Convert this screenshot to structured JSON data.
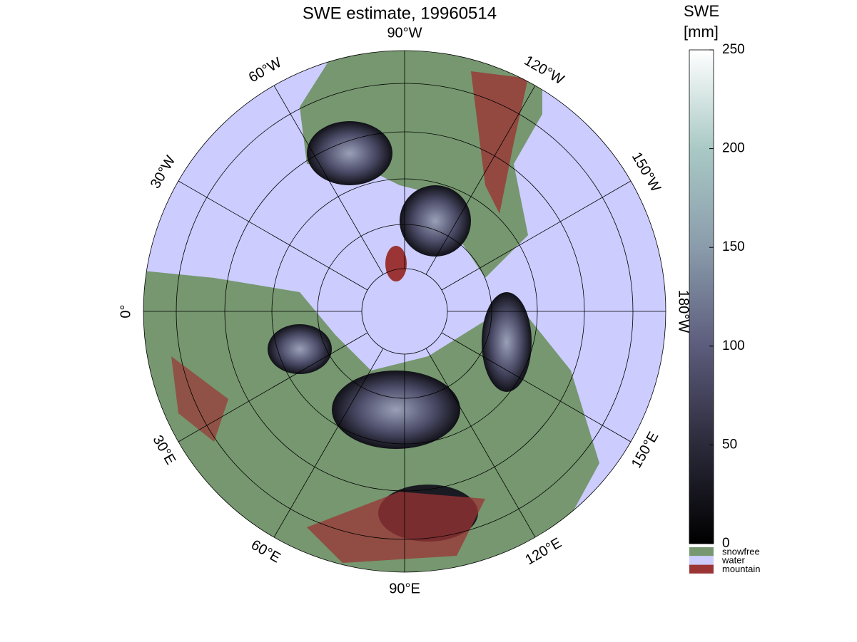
{
  "title": "SWE estimate, 19960514",
  "longitude_labels": [
    "0°",
    "30°W",
    "60°W",
    "90°W",
    "120°W",
    "150°W",
    "180°W",
    "150°E",
    "120°E",
    "90°E",
    "60°E",
    "30°E"
  ],
  "colorbar": {
    "label": [
      "SWE",
      "[mm]"
    ],
    "lim": [
      0,
      250
    ],
    "ticks": [
      0,
      50,
      100,
      150,
      200,
      250
    ]
  },
  "legend": [
    {
      "label": "snowfree",
      "color": "#76976f"
    },
    {
      "label": "water",
      "color": "#ccccff"
    },
    {
      "label": "mountain",
      "color": "#9b3434"
    }
  ]
}
